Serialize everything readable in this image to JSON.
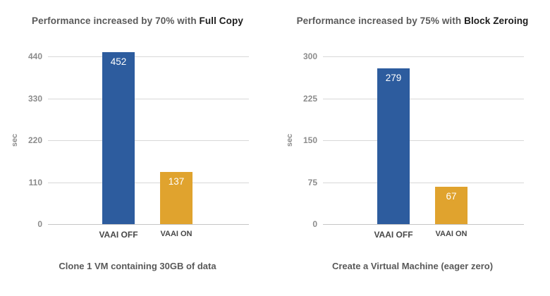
{
  "page": {
    "background": "#ffffff"
  },
  "chart_data": [
    {
      "type": "bar",
      "title_plain": "Performance increased by 70% with",
      "title_emphasis": "Full Copy",
      "caption": "Clone 1 VM containing 30GB of data",
      "categories": [
        "VAAI OFF",
        "VAAI ON"
      ],
      "values": [
        452,
        137
      ],
      "value_labels": [
        "452",
        "137"
      ],
      "bar_colors": [
        "#2d5c9e",
        "#e0a32e"
      ],
      "value_label_color": "#ffffff",
      "ylabel": "sec",
      "xlabel": "",
      "ylim": [
        0,
        440
      ],
      "yticks": [
        0,
        110,
        220,
        330,
        440
      ],
      "grid": true,
      "legend": "none"
    },
    {
      "type": "bar",
      "title_plain": "Performance increased by 75% with",
      "title_emphasis": "Block Zeroing",
      "caption": "Create a Virtual Machine (eager zero)",
      "categories": [
        "VAAI OFF",
        "VAAI ON"
      ],
      "values": [
        279,
        67
      ],
      "value_labels": [
        "279",
        "67"
      ],
      "bar_colors": [
        "#2d5c9e",
        "#e0a32e"
      ],
      "value_label_color": "#ffffff",
      "ylabel": "sec",
      "xlabel": "",
      "ylim": [
        0,
        300
      ],
      "yticks": [
        0,
        75,
        150,
        225,
        300
      ],
      "grid": true,
      "legend": "none"
    }
  ]
}
